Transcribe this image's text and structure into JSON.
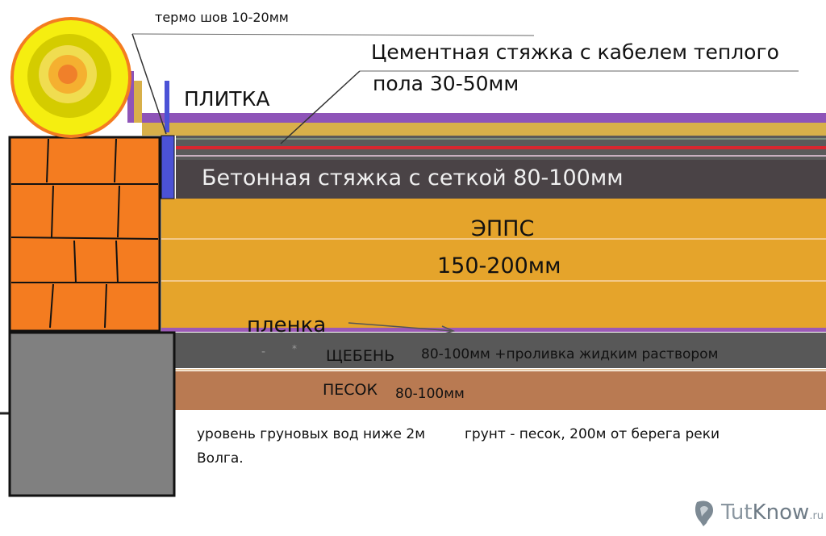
{
  "labels": {
    "thermo_seam": "термо шов 10-20мм",
    "cement_screed_line1": "Цементная стяжка с кабелем теплого",
    "cement_screed_line2": "пола 30-50мм",
    "tile": "ПЛИТКА",
    "concrete_screed": "Бетонная стяжка с сеткой 80-100мм",
    "epps": "ЭППС",
    "epps_thickness": "150-200мм",
    "film": "пленка",
    "gravel": "ЩЕБЕНЬ",
    "gravel_note": "80-100мм +проливка жидким раствором",
    "sand": "ПЕСОК",
    "sand_note": "80-100мм",
    "groundwater": "уровень груновых вод ниже 2м",
    "soil_line": "грунт - песок, 200м от берега реки",
    "soil_line2": "Волга."
  },
  "watermark": {
    "brand_a": "Tut",
    "brand_b": "Know",
    "brand_c": ".ru",
    "icon": "tutknow-logo-icon"
  },
  "colors": {
    "brick": "#f47c20",
    "foundation": "#808080",
    "tile": "#8e54b8",
    "cement_screed": "#d8b04a",
    "concrete_screed": "#4a4346",
    "epps": "#e5a42b",
    "film": "#9b59b6",
    "gravel": "#585858",
    "sand": "#b97a52",
    "heating_cable": "#d9262f",
    "thermo_seam": "#4b52d6",
    "radiator_outer": "#f5ee10",
    "radiator_inner": "#d4cc00",
    "radiator_core": "#f59a2a"
  }
}
